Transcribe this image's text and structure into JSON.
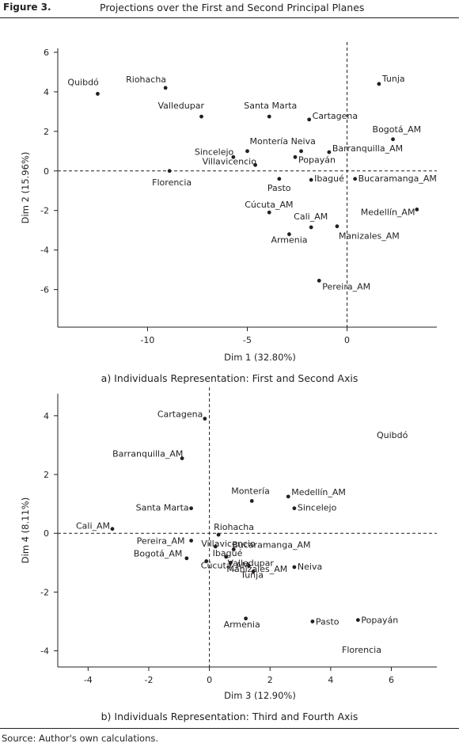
{
  "figure": {
    "label": "Figure 3.",
    "title": "Projections over the First and Second Principal Planes",
    "source": "Source: Author's own calculations."
  },
  "chart_data": [
    {
      "type": "scatter",
      "caption": "a) Individuals Representation: First and Second Axis",
      "xlabel": "Dim 1 (32.80%)",
      "ylabel": "Dim 2 (15.96%)",
      "xlim": [
        -14.5,
        4.5
      ],
      "ylim": [
        -7.9,
        6.2
      ],
      "xticks": [
        -10,
        -5,
        0
      ],
      "yticks": [
        -6,
        -4,
        -2,
        0,
        2,
        4,
        6
      ],
      "reference_lines": {
        "x": 0,
        "y": 0,
        "style": "dashed"
      },
      "grid": false,
      "points": [
        {
          "label": "Quibdó",
          "x": -12.5,
          "y": 3.9
        },
        {
          "label": "Riohacha",
          "x": -9.1,
          "y": 4.2
        },
        {
          "label": "Valledupar",
          "x": -7.3,
          "y": 2.75
        },
        {
          "label": "Santa Marta",
          "x": -3.9,
          "y": 2.75
        },
        {
          "label": "Cartagena",
          "x": -1.9,
          "y": 2.6
        },
        {
          "label": "Tunja",
          "x": 1.6,
          "y": 4.4
        },
        {
          "label": "Bogotá_AM",
          "x": 2.3,
          "y": 1.6
        },
        {
          "label": "Montería",
          "x": -5.0,
          "y": 1.0
        },
        {
          "label": "Neiva",
          "x": -2.3,
          "y": 1.0
        },
        {
          "label": "Barranquilla_AM",
          "x": -0.9,
          "y": 0.95
        },
        {
          "label": "Sincelejo",
          "x": -5.7,
          "y": 0.7
        },
        {
          "label": "Popayán",
          "x": -2.6,
          "y": 0.7
        },
        {
          "label": "Villavicencio",
          "x": -4.6,
          "y": 0.3
        },
        {
          "label": "Florencia",
          "x": -8.9,
          "y": 0.0
        },
        {
          "label": "Pasto",
          "x": -3.4,
          "y": -0.4
        },
        {
          "label": "Ibagué",
          "x": -1.8,
          "y": -0.45
        },
        {
          "label": "Bucaramanga_AM",
          "x": 0.4,
          "y": -0.4
        },
        {
          "label": "Cúcuta_AM",
          "x": -3.9,
          "y": -2.1
        },
        {
          "label": "Cali_AM",
          "x": -1.8,
          "y": -2.85
        },
        {
          "label": "Manizales_AM",
          "x": -0.5,
          "y": -2.8
        },
        {
          "label": "Medellín_AM",
          "x": 3.5,
          "y": -1.95
        },
        {
          "label": "Armenia",
          "x": -2.9,
          "y": -3.2
        },
        {
          "label": "Pereira_AM",
          "x": -1.4,
          "y": -5.55
        }
      ]
    },
    {
      "type": "scatter",
      "caption": "b) Individuals Representation: Third and Fourth Axis",
      "xlabel": "Dim 3 (12.90%)",
      "ylabel": "Dim 4 (8.11%)",
      "xlim": [
        -5,
        7.5
      ],
      "ylim": [
        -4.55,
        4.75
      ],
      "xticks": [
        -4,
        -2,
        0,
        2,
        4,
        6
      ],
      "yticks": [
        -4,
        -2,
        0,
        2,
        4
      ],
      "reference_lines": {
        "x": 0,
        "y": 0,
        "style": "dashed"
      },
      "grid": false,
      "points": [
        {
          "label": "Cartagena",
          "x": -0.15,
          "y": 3.9
        },
        {
          "label": "Barranquilla_AM",
          "x": -0.9,
          "y": 2.55
        },
        {
          "label": "Quibdó",
          "x": null,
          "y": null
        },
        {
          "label": "Montería",
          "x": 1.4,
          "y": 1.1
        },
        {
          "label": "Medellín_AM",
          "x": 2.6,
          "y": 1.25
        },
        {
          "label": "Sincelejo",
          "x": 2.8,
          "y": 0.85
        },
        {
          "label": "Santa Marta",
          "x": -0.6,
          "y": 0.85
        },
        {
          "label": "Cali_AM",
          "x": -3.2,
          "y": 0.15
        },
        {
          "label": "Riohacha",
          "x": 0.3,
          "y": -0.05
        },
        {
          "label": "Pereira_AM",
          "x": -0.6,
          "y": -0.25
        },
        {
          "label": "Villavicencio",
          "x": 0.2,
          "y": -0.45
        },
        {
          "label": "Bucaramanga_AM",
          "x": 0.8,
          "y": -0.55
        },
        {
          "label": "Bogotá_AM",
          "x": -0.75,
          "y": -0.85
        },
        {
          "label": "Ibagué",
          "x": 0.55,
          "y": -0.8
        },
        {
          "label": "Valledupar",
          "x": 0.7,
          "y": -1.0
        },
        {
          "label": "Cúcuta_AM",
          "x": -0.1,
          "y": -0.95
        },
        {
          "label": "Manizales_AM",
          "x": 1.3,
          "y": -1.1
        },
        {
          "label": "Neiva",
          "x": 2.8,
          "y": -1.15
        },
        {
          "label": "Tunja",
          "x": 1.45,
          "y": -1.3
        },
        {
          "label": "Armenia",
          "x": 1.2,
          "y": -2.9
        },
        {
          "label": "Pasto",
          "x": 3.4,
          "y": -3.0
        },
        {
          "label": "Popayán",
          "x": 4.9,
          "y": -2.95
        },
        {
          "label": "Florencia",
          "x": null,
          "y": null
        }
      ]
    }
  ]
}
